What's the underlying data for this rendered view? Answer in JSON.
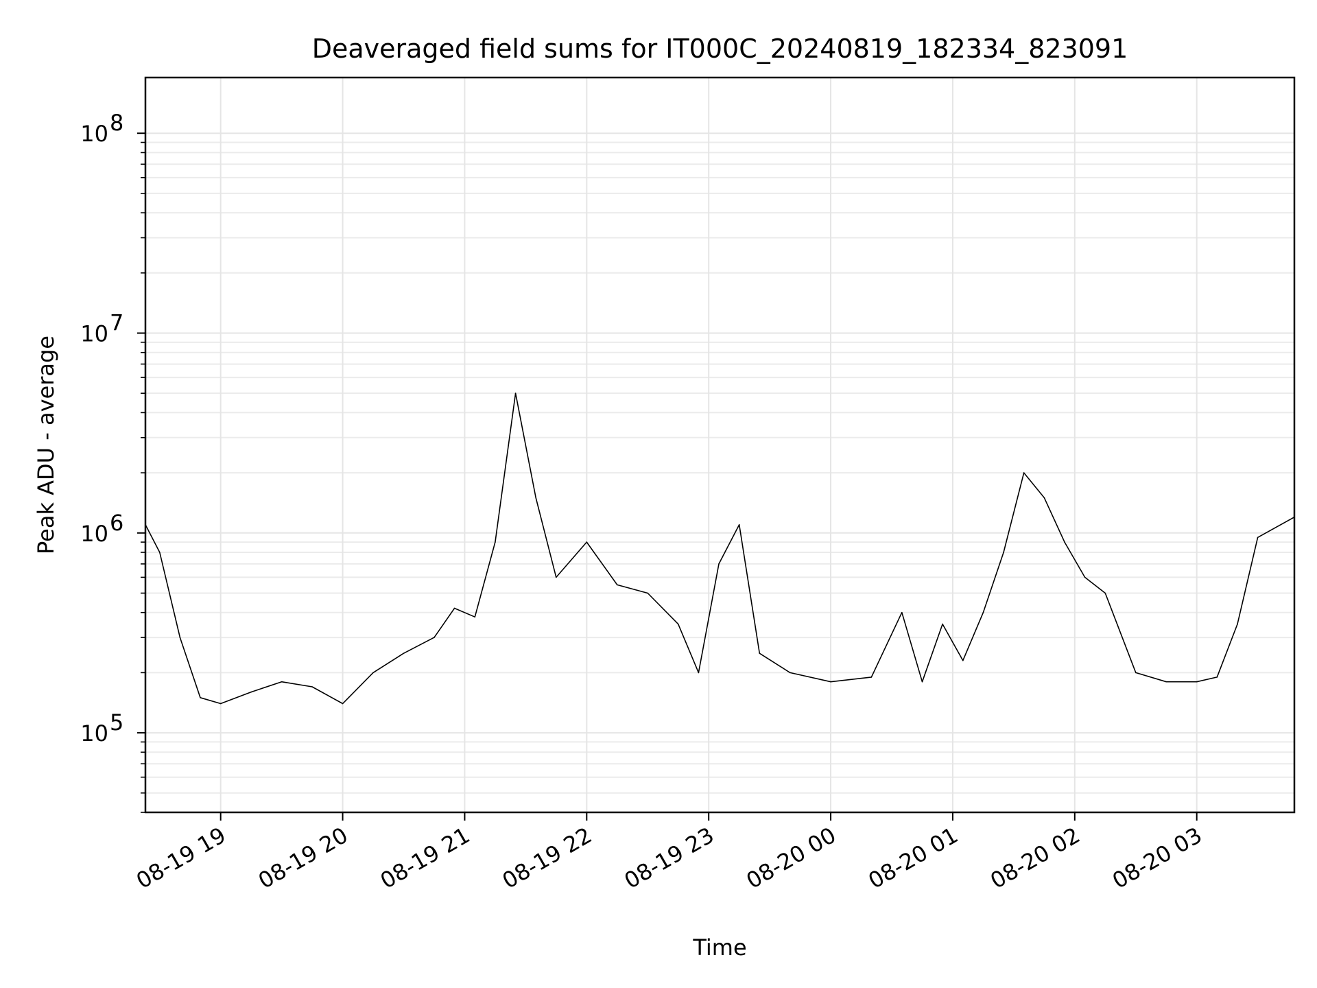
{
  "chart_data": {
    "type": "line",
    "title": "Deaveraged field sums for IT000C_20240819_182334_823091",
    "xlabel": "Time",
    "ylabel": "Peak ADU - average",
    "y_scale": "log",
    "ylim": [
      40000,
      190000000
    ],
    "xlim": [
      "2024-08-19 18:23",
      "2024-08-20 03:48"
    ],
    "grid": true,
    "line_color": "#000000",
    "grid_color": "#e5e5e5",
    "x_ticks": [
      {
        "label": "08-19 19",
        "time": "2024-08-19 19:00"
      },
      {
        "label": "08-19 20",
        "time": "2024-08-19 20:00"
      },
      {
        "label": "08-19 21",
        "time": "2024-08-19 21:00"
      },
      {
        "label": "08-19 22",
        "time": "2024-08-19 22:00"
      },
      {
        "label": "08-19 23",
        "time": "2024-08-19 23:00"
      },
      {
        "label": "08-20 00",
        "time": "2024-08-20 00:00"
      },
      {
        "label": "08-20 01",
        "time": "2024-08-20 01:00"
      },
      {
        "label": "08-20 02",
        "time": "2024-08-20 02:00"
      },
      {
        "label": "08-20 03",
        "time": "2024-08-20 03:00"
      }
    ],
    "y_ticks": [
      {
        "base": "10",
        "exp": "5",
        "value": 100000
      },
      {
        "base": "10",
        "exp": "6",
        "value": 1000000
      },
      {
        "base": "10",
        "exp": "7",
        "value": 10000000
      },
      {
        "base": "10",
        "exp": "8",
        "value": 100000000
      }
    ],
    "series": [
      {
        "x": [
          "2024-08-19 18:23",
          "2024-08-19 18:30",
          "2024-08-19 18:40",
          "2024-08-19 18:50",
          "2024-08-19 19:00",
          "2024-08-19 19:15",
          "2024-08-19 19:30",
          "2024-08-19 19:45",
          "2024-08-19 20:00",
          "2024-08-19 20:15",
          "2024-08-19 20:30",
          "2024-08-19 20:45",
          "2024-08-19 20:55",
          "2024-08-19 21:05",
          "2024-08-19 21:15",
          "2024-08-19 21:25",
          "2024-08-19 21:35",
          "2024-08-19 21:45",
          "2024-08-19 22:00",
          "2024-08-19 22:15",
          "2024-08-19 22:30",
          "2024-08-19 22:45",
          "2024-08-19 22:55",
          "2024-08-19 23:05",
          "2024-08-19 23:15",
          "2024-08-19 23:25",
          "2024-08-19 23:40",
          "2024-08-20 00:00",
          "2024-08-20 00:20",
          "2024-08-20 00:35",
          "2024-08-20 00:45",
          "2024-08-20 00:55",
          "2024-08-20 01:05",
          "2024-08-20 01:15",
          "2024-08-20 01:25",
          "2024-08-20 01:35",
          "2024-08-20 01:45",
          "2024-08-20 01:55",
          "2024-08-20 02:05",
          "2024-08-20 02:15",
          "2024-08-20 02:30",
          "2024-08-20 02:45",
          "2024-08-20 03:00",
          "2024-08-20 03:10",
          "2024-08-20 03:20",
          "2024-08-20 03:30",
          "2024-08-20 03:48"
        ],
        "y": [
          1100000,
          800000,
          300000,
          150000,
          140000,
          160000,
          180000,
          170000,
          140000,
          200000,
          250000,
          300000,
          420000,
          380000,
          900000,
          5000000,
          1500000,
          600000,
          900000,
          550000,
          500000,
          350000,
          200000,
          700000,
          1100000,
          250000,
          200000,
          180000,
          190000,
          400000,
          180000,
          350000,
          230000,
          400000,
          800000,
          2000000,
          1500000,
          900000,
          600000,
          500000,
          200000,
          180000,
          180000,
          190000,
          350000,
          950000,
          1200000
        ]
      }
    ]
  }
}
